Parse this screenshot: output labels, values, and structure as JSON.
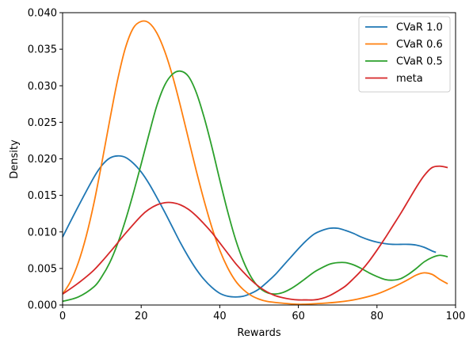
{
  "chart_data": {
    "type": "line",
    "xlabel": "Rewards",
    "ylabel": "Density",
    "xlim": [
      0,
      100
    ],
    "ylim": [
      0,
      0.04
    ],
    "xticks": [
      0,
      20,
      40,
      60,
      80,
      100
    ],
    "yticks": [
      0.0,
      0.005,
      0.01,
      0.015,
      0.02,
      0.025,
      0.03,
      0.035,
      0.04
    ],
    "ytick_labels": [
      "0.000",
      "0.005",
      "0.010",
      "0.015",
      "0.020",
      "0.025",
      "0.030",
      "0.035",
      "0.040"
    ],
    "grid": false,
    "legend_position": "top-right",
    "series": [
      {
        "name": "CVaR 1.0",
        "color": "#1f77b4",
        "x": [
          0,
          4,
          8,
          10,
          12,
          14,
          16,
          18,
          20,
          22,
          24,
          26,
          28,
          30,
          32,
          34,
          36,
          38,
          40,
          42,
          44,
          46,
          48,
          50,
          52,
          54,
          56,
          58,
          60,
          62,
          64,
          66,
          68,
          70,
          72,
          74,
          76,
          78,
          80,
          82,
          84,
          86,
          88,
          90,
          92,
          94,
          95
        ],
        "y": [
          0.0093,
          0.0135,
          0.0175,
          0.0191,
          0.0201,
          0.0204,
          0.0202,
          0.0194,
          0.0182,
          0.0166,
          0.0147,
          0.0127,
          0.0106,
          0.0085,
          0.0066,
          0.0049,
          0.0035,
          0.0024,
          0.0016,
          0.0012,
          0.0011,
          0.0012,
          0.0016,
          0.0022,
          0.0031,
          0.0041,
          0.0053,
          0.0065,
          0.0077,
          0.0088,
          0.0097,
          0.0102,
          0.0105,
          0.0105,
          0.0102,
          0.0098,
          0.0093,
          0.0089,
          0.0086,
          0.0084,
          0.0083,
          0.0083,
          0.0083,
          0.0082,
          0.0079,
          0.0074,
          0.0072
        ]
      },
      {
        "name": "CVaR 0.6",
        "color": "#ff7f0e",
        "x": [
          0,
          2,
          4,
          6,
          8,
          10,
          12,
          14,
          16,
          18,
          20,
          22,
          24,
          26,
          28,
          30,
          32,
          34,
          36,
          38,
          40,
          42,
          44,
          46,
          48,
          50,
          52,
          55,
          60,
          65,
          70,
          75,
          80,
          84,
          88,
          90,
          92,
          94,
          96,
          98
        ],
        "y": [
          0.0015,
          0.0032,
          0.0058,
          0.0094,
          0.014,
          0.0195,
          0.0253,
          0.0308,
          0.0352,
          0.0379,
          0.0388,
          0.0386,
          0.0372,
          0.0347,
          0.0313,
          0.0272,
          0.0228,
          0.0184,
          0.0143,
          0.0106,
          0.0075,
          0.0051,
          0.0033,
          0.0021,
          0.0013,
          0.0008,
          0.0005,
          0.0003,
          0.0001,
          0.0002,
          0.0004,
          0.0008,
          0.0015,
          0.0024,
          0.0035,
          0.0041,
          0.0044,
          0.0042,
          0.0035,
          0.0029
        ]
      },
      {
        "name": "CVaR 0.5",
        "color": "#2ca02c",
        "x": [
          0,
          4,
          8,
          10,
          12,
          14,
          16,
          18,
          20,
          22,
          24,
          26,
          28,
          30,
          32,
          34,
          36,
          38,
          40,
          42,
          44,
          46,
          48,
          50,
          52,
          54,
          56,
          58,
          60,
          62,
          64,
          66,
          68,
          70,
          72,
          74,
          76,
          78,
          80,
          82,
          84,
          86,
          88,
          90,
          92,
          94,
          96,
          98
        ],
        "y": [
          0.0005,
          0.0011,
          0.0025,
          0.0039,
          0.0058,
          0.0084,
          0.0116,
          0.0153,
          0.0193,
          0.0234,
          0.0273,
          0.0301,
          0.0316,
          0.032,
          0.0313,
          0.0291,
          0.0257,
          0.0216,
          0.0171,
          0.0128,
          0.009,
          0.006,
          0.0038,
          0.0024,
          0.0017,
          0.0015,
          0.0017,
          0.0022,
          0.0029,
          0.0037,
          0.0045,
          0.0051,
          0.0056,
          0.0058,
          0.0058,
          0.0055,
          0.005,
          0.0044,
          0.0039,
          0.0035,
          0.0034,
          0.0036,
          0.0042,
          0.005,
          0.0059,
          0.0065,
          0.0068,
          0.0066
        ]
      },
      {
        "name": "meta",
        "color": "#d62728",
        "x": [
          0,
          4,
          8,
          12,
          16,
          20,
          22,
          24,
          26,
          28,
          30,
          32,
          34,
          36,
          38,
          40,
          42,
          44,
          46,
          48,
          50,
          52,
          54,
          56,
          58,
          60,
          62,
          64,
          66,
          68,
          70,
          72,
          74,
          76,
          78,
          80,
          82,
          84,
          86,
          88,
          90,
          92,
          94,
          96,
          98
        ],
        "y": [
          0.0015,
          0.003,
          0.0048,
          0.0072,
          0.0098,
          0.0122,
          0.0131,
          0.0137,
          0.014,
          0.014,
          0.0137,
          0.0131,
          0.0122,
          0.0111,
          0.0099,
          0.0085,
          0.0071,
          0.0057,
          0.0045,
          0.0034,
          0.0025,
          0.0018,
          0.0013,
          0.001,
          0.0008,
          0.0007,
          0.0007,
          0.0007,
          0.0009,
          0.0013,
          0.0019,
          0.0026,
          0.0036,
          0.0047,
          0.006,
          0.0075,
          0.0091,
          0.0108,
          0.0125,
          0.0143,
          0.0161,
          0.0177,
          0.0188,
          0.019,
          0.0188
        ]
      }
    ]
  }
}
